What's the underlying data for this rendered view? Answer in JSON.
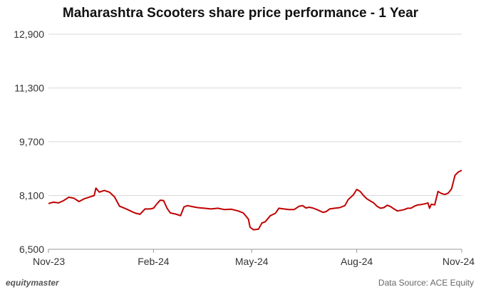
{
  "title": "Maharashtra Scooters share price performance - 1 Year",
  "footer": {
    "brand": "equitymaster",
    "source": "Data Source: ACE Equity"
  },
  "chart_data": {
    "type": "line",
    "title": "Maharashtra Scooters share price performance - 1 Year",
    "xlabel": "",
    "ylabel": "",
    "ylim": [
      6500,
      12900
    ],
    "y_ticks": [
      6500,
      8100,
      9700,
      11300,
      12900
    ],
    "y_tick_labels": [
      "6,500",
      "8,100",
      "9,700",
      "11,300",
      "12,900"
    ],
    "x_ticks": [
      0,
      62,
      120,
      182,
      244
    ],
    "x_tick_labels": [
      "Nov-23",
      "Feb-24",
      "May-24",
      "Aug-24",
      "Nov-24"
    ],
    "x_range": [
      0,
      244
    ],
    "grid": "horizontal",
    "legend": "none",
    "line_color": "#c00000",
    "series": [
      {
        "values": [
          [
            0,
            7860
          ],
          [
            3,
            7900
          ],
          [
            6,
            7880
          ],
          [
            9,
            7950
          ],
          [
            12,
            8050
          ],
          [
            15,
            8020
          ],
          [
            18,
            7920
          ],
          [
            21,
            8000
          ],
          [
            24,
            8050
          ],
          [
            27,
            8100
          ],
          [
            28,
            8320
          ],
          [
            30,
            8200
          ],
          [
            33,
            8250
          ],
          [
            36,
            8200
          ],
          [
            39,
            8060
          ],
          [
            42,
            7780
          ],
          [
            45,
            7720
          ],
          [
            48,
            7650
          ],
          [
            51,
            7580
          ],
          [
            54,
            7540
          ],
          [
            57,
            7700
          ],
          [
            60,
            7700
          ],
          [
            62,
            7720
          ],
          [
            64,
            7850
          ],
          [
            66,
            7960
          ],
          [
            68,
            7950
          ],
          [
            70,
            7720
          ],
          [
            72,
            7580
          ],
          [
            75,
            7550
          ],
          [
            78,
            7500
          ],
          [
            80,
            7760
          ],
          [
            82,
            7800
          ],
          [
            85,
            7770
          ],
          [
            88,
            7740
          ],
          [
            92,
            7720
          ],
          [
            96,
            7700
          ],
          [
            100,
            7720
          ],
          [
            104,
            7680
          ],
          [
            108,
            7690
          ],
          [
            112,
            7640
          ],
          [
            115,
            7580
          ],
          [
            118,
            7400
          ],
          [
            119,
            7160
          ],
          [
            121,
            7080
          ],
          [
            124,
            7100
          ],
          [
            126,
            7280
          ],
          [
            128,
            7320
          ],
          [
            131,
            7500
          ],
          [
            134,
            7570
          ],
          [
            136,
            7720
          ],
          [
            139,
            7700
          ],
          [
            142,
            7680
          ],
          [
            145,
            7680
          ],
          [
            148,
            7780
          ],
          [
            150,
            7800
          ],
          [
            152,
            7730
          ],
          [
            154,
            7750
          ],
          [
            156,
            7730
          ],
          [
            159,
            7670
          ],
          [
            162,
            7600
          ],
          [
            164,
            7620
          ],
          [
            166,
            7700
          ],
          [
            169,
            7720
          ],
          [
            172,
            7740
          ],
          [
            175,
            7800
          ],
          [
            177,
            7980
          ],
          [
            180,
            8120
          ],
          [
            182,
            8280
          ],
          [
            184,
            8220
          ],
          [
            186,
            8100
          ],
          [
            188,
            8000
          ],
          [
            190,
            7940
          ],
          [
            192,
            7880
          ],
          [
            194,
            7780
          ],
          [
            196,
            7720
          ],
          [
            198,
            7740
          ],
          [
            200,
            7810
          ],
          [
            202,
            7770
          ],
          [
            204,
            7700
          ],
          [
            206,
            7640
          ],
          [
            208,
            7660
          ],
          [
            210,
            7680
          ],
          [
            212,
            7720
          ],
          [
            214,
            7720
          ],
          [
            216,
            7780
          ],
          [
            218,
            7820
          ],
          [
            220,
            7830
          ],
          [
            222,
            7850
          ],
          [
            224,
            7880
          ],
          [
            225,
            7720
          ],
          [
            226,
            7840
          ],
          [
            228,
            7820
          ],
          [
            230,
            8220
          ],
          [
            232,
            8160
          ],
          [
            234,
            8130
          ],
          [
            236,
            8170
          ],
          [
            238,
            8300
          ],
          [
            240,
            8700
          ],
          [
            242,
            8800
          ],
          [
            244,
            8850
          ]
        ]
      }
    ]
  }
}
